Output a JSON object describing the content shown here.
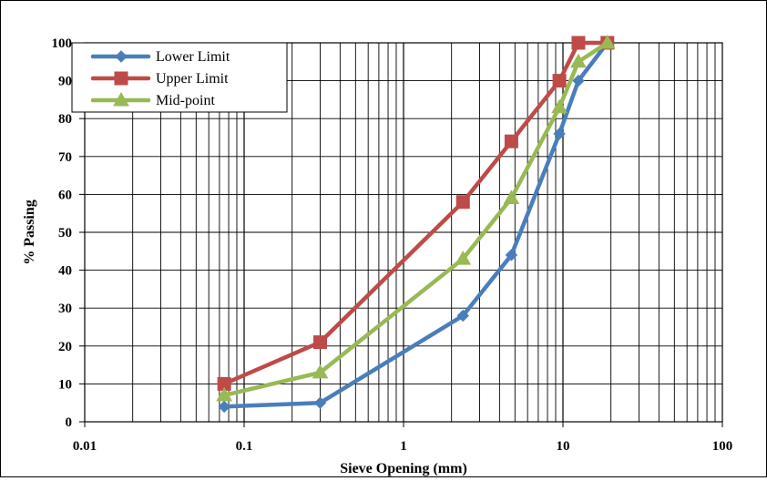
{
  "chart_data": {
    "type": "line",
    "title": "",
    "xlabel": "Sieve Opening (mm)",
    "ylabel": "% Passing",
    "xscale": "log",
    "xlim": [
      0.01,
      100
    ],
    "ylim": [
      0,
      100
    ],
    "grid": true,
    "legend_position": "top-left",
    "x_ticks": [
      {
        "value": 0.01,
        "label": "0.01"
      },
      {
        "value": 0.1,
        "label": "0.1"
      },
      {
        "value": 1,
        "label": "1"
      },
      {
        "value": 10,
        "label": "10"
      },
      {
        "value": 100,
        "label": "100"
      }
    ],
    "y_ticks": [
      0,
      10,
      20,
      30,
      40,
      50,
      60,
      70,
      80,
      90,
      100
    ],
    "series": [
      {
        "name": "Lower Limit",
        "color": "#4A7EBB",
        "marker": "diamond",
        "x": [
          0.075,
          0.3,
          2.36,
          4.75,
          9.5,
          12.5,
          19
        ],
        "y": [
          4,
          5,
          28,
          44,
          76,
          90,
          100
        ]
      },
      {
        "name": "Upper Limit",
        "color": "#BE4B48",
        "marker": "square",
        "x": [
          0.075,
          0.3,
          2.36,
          4.75,
          9.5,
          12.5,
          19
        ],
        "y": [
          10,
          21,
          58,
          74,
          90,
          100,
          100
        ]
      },
      {
        "name": "Mid-point",
        "color": "#98B954",
        "marker": "triangle",
        "x": [
          0.075,
          0.3,
          2.36,
          4.75,
          9.5,
          12.5,
          19
        ],
        "y": [
          7,
          13,
          43,
          59,
          83,
          95,
          100
        ]
      }
    ]
  }
}
